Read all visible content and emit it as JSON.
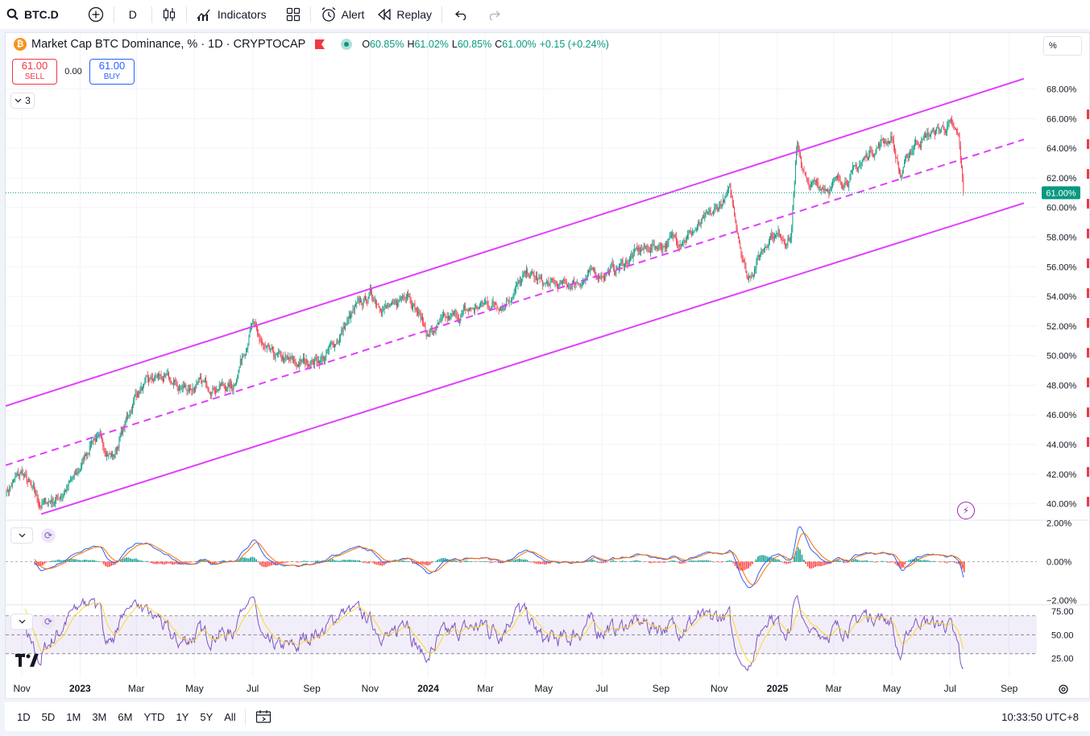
{
  "toolbar": {
    "symbol": "BTC.D",
    "interval": "D",
    "indicators_label": "Indicators",
    "alert_label": "Alert",
    "replay_label": "Replay"
  },
  "legend": {
    "title": "Market Cap BTC Dominance, % · 1D · CRYPTOCAP",
    "logo_letter": "₿",
    "open_k": "O",
    "open_v": "60.85%",
    "high_k": "H",
    "high_v": "61.02%",
    "low_k": "L",
    "low_v": "60.85%",
    "close_k": "C",
    "close_v": "61.00%",
    "change": "+0.15 (+0.24%)"
  },
  "trade": {
    "sell_price": "61.00",
    "sell_label": "SELL",
    "spread": "0.00",
    "buy_price": "61.00",
    "buy_label": "BUY"
  },
  "indicators_collapsed_count": "3",
  "unit_label": "%",
  "bottom": {
    "ranges": [
      "1D",
      "5D",
      "1M",
      "3M",
      "6M",
      "YTD",
      "1Y",
      "5Y",
      "All"
    ],
    "clock": "10:33:50 UTC+8"
  },
  "colors": {
    "up": "#089981",
    "down": "#f23645",
    "channel": "#e040fb",
    "macd": "#2962ff",
    "signal": "#ff6d00",
    "rsi": "#7e57c2",
    "rsi_ma": "#fdd835",
    "last_price_bg": "#089981"
  },
  "chart_data": [
    {
      "type": "line",
      "title": "Market Cap BTC Dominance, % · 1D · CRYPTOCAP",
      "series_style": "candlestick",
      "y_unit": "%",
      "ylim": [
        39,
        69.5
      ],
      "y_ticks": [
        "68.00%",
        "66.00%",
        "64.00%",
        "62.00%",
        "60.00%",
        "58.00%",
        "56.00%",
        "54.00%",
        "52.00%",
        "50.00%",
        "48.00%",
        "46.00%",
        "44.00%",
        "42.00%",
        "40.00%"
      ],
      "y_tick_values": [
        68,
        66,
        64,
        62,
        60,
        58,
        56,
        54,
        52,
        50,
        48,
        46,
        44,
        42,
        40
      ],
      "last_price_label": "61.00%",
      "last_price": 61.0,
      "x_ticks": [
        "Nov",
        "2023",
        "Mar",
        "May",
        "Jul",
        "Sep",
        "Nov",
        "2024",
        "Mar",
        "May",
        "Jul",
        "Sep",
        "Nov",
        "2025",
        "Mar",
        "May",
        "Jul",
        "Sep"
      ],
      "x_tick_bold": [
        false,
        true,
        false,
        false,
        false,
        false,
        false,
        true,
        false,
        false,
        false,
        false,
        false,
        true,
        false,
        false,
        false,
        false
      ],
      "x_range": [
        "2022-10-15",
        "2025-09-30"
      ],
      "x_tick_dates": [
        "2022-11-01",
        "2023-01-01",
        "2023-03-01",
        "2023-05-01",
        "2023-07-01",
        "2023-09-01",
        "2023-11-01",
        "2024-01-01",
        "2024-03-01",
        "2024-05-01",
        "2024-07-01",
        "2024-09-01",
        "2024-11-01",
        "2025-01-01",
        "2025-03-01",
        "2025-05-01",
        "2025-07-01",
        "2025-09-01"
      ],
      "x": [
        "2022-10-15",
        "2022-11-01",
        "2022-11-20",
        "2022-12-10",
        "2022-12-28",
        "2023-01-15",
        "2023-02-05",
        "2023-03-01",
        "2023-03-25",
        "2023-04-15",
        "2023-05-10",
        "2023-06-10",
        "2023-06-30",
        "2023-07-15",
        "2023-08-15",
        "2023-09-15",
        "2023-10-15",
        "2023-11-01",
        "2023-11-25",
        "2023-12-10",
        "2024-01-01",
        "2024-01-15",
        "2024-02-01",
        "2024-03-01",
        "2024-03-20",
        "2024-04-15",
        "2024-05-01",
        "2024-05-25",
        "2024-06-20",
        "2024-07-15",
        "2024-08-10",
        "2024-09-05",
        "2024-10-01",
        "2024-10-25",
        "2024-11-12",
        "2024-12-01",
        "2024-12-25",
        "2025-01-15",
        "2025-01-22",
        "2025-02-01",
        "2025-02-25",
        "2025-03-20",
        "2025-04-10",
        "2025-05-01",
        "2025-05-10",
        "2025-05-25",
        "2025-06-15",
        "2025-06-30",
        "2025-07-10",
        "2025-07-15"
      ],
      "y": [
        40.8,
        42.1,
        39.9,
        40.5,
        41.8,
        44.6,
        43.2,
        47.5,
        48.6,
        47.8,
        48.0,
        47.9,
        52.1,
        50.1,
        49.4,
        49.9,
        52.9,
        54.1,
        53.0,
        54.6,
        51.4,
        52.1,
        52.7,
        53.5,
        53.6,
        55.5,
        54.8,
        54.7,
        55.4,
        55.8,
        57.1,
        57.6,
        58.2,
        59.5,
        61.0,
        55.2,
        58.3,
        58.0,
        64.3,
        61.5,
        61.5,
        62.2,
        63.9,
        64.8,
        62.1,
        64.4,
        65.1,
        65.6,
        64.6,
        61.0
      ],
      "channel_upper": [
        [
          0,
          46.6
        ],
        [
          1264,
          68.7
        ]
      ],
      "channel_mid": [
        [
          0,
          42.6
        ],
        [
          1264,
          64.6
        ]
      ],
      "channel_lower": [
        [
          44,
          39.3
        ],
        [
          1264,
          60.3
        ]
      ]
    },
    {
      "type": "line",
      "title": "",
      "ylim": [
        -2.1,
        2.1
      ],
      "y_ticks": [
        "2.00%",
        "0.00%",
        "−2.00%"
      ],
      "y_tick_values": [
        2,
        0,
        -2
      ],
      "series": [
        {
          "values_ref": "derived_from_price_macd"
        },
        {
          "values_ref": "derived_from_price_signal"
        }
      ]
    },
    {
      "type": "line",
      "title": "",
      "ylim": [
        12,
        80
      ],
      "y_ticks": [
        "75.00",
        "50.00",
        "25.00"
      ],
      "y_tick_values": [
        75,
        50,
        25
      ],
      "band": [
        30,
        70
      ]
    }
  ]
}
